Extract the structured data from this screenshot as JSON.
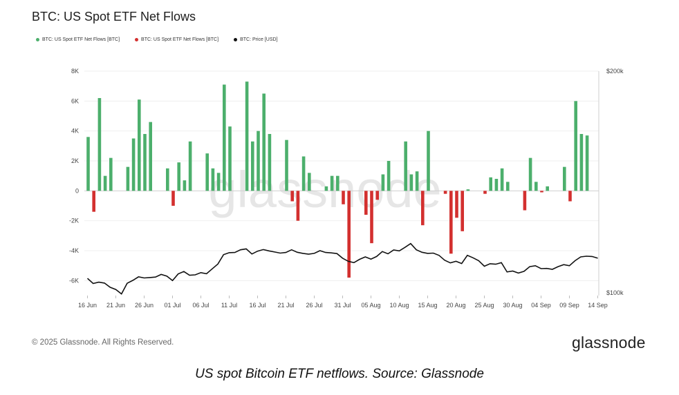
{
  "title": "BTC: US Spot ETF Net Flows",
  "legend": [
    {
      "label": "BTC: US Spot ETF Net Flows [BTC]",
      "color": "#4caf6c"
    },
    {
      "label": "BTC: US Spot ETF Net Flows [BTC]",
      "color": "#d3302f"
    },
    {
      "label": "BTC: Price [USD]",
      "color": "#111111"
    }
  ],
  "watermark": "glassnode",
  "copyright": "© 2025 Glassnode. All Rights Reserved.",
  "brand": "glassnode",
  "caption": "US spot Bitcoin ETF netflows. Source: Glassnode",
  "chart_data": {
    "type": "bar",
    "x_ticks": [
      "16 Jun",
      "21 Jun",
      "26 Jun",
      "01 Jul",
      "06 Jul",
      "11 Jul",
      "16 Jul",
      "21 Jul",
      "26 Jul",
      "31 Jul",
      "05 Aug",
      "10 Aug",
      "15 Aug",
      "20 Aug",
      "25 Aug",
      "30 Aug",
      "04 Sep",
      "09 Sep",
      "14 Sep"
    ],
    "y_ticks": [
      "8K",
      "6K",
      "4K",
      "2K",
      "0",
      "-2K",
      "-4K",
      "-6K"
    ],
    "y_range": [
      -7000,
      8000
    ],
    "y2_ticks": [
      "$200k",
      "$100k"
    ],
    "y2_range": [
      100000,
      200000
    ],
    "colors": {
      "positive": "#4caf6c",
      "negative": "#d3302f",
      "price": "#111111"
    },
    "flows_days_from_16_jun": [
      [
        0,
        3600
      ],
      [
        1,
        -1400
      ],
      [
        2,
        6200
      ],
      [
        3,
        1000
      ],
      [
        4,
        2200
      ],
      [
        7,
        1600
      ],
      [
        8,
        3500
      ],
      [
        9,
        6100
      ],
      [
        10,
        3800
      ],
      [
        11,
        4600
      ],
      [
        14,
        1500
      ],
      [
        15,
        -1000
      ],
      [
        16,
        1900
      ],
      [
        17,
        700
      ],
      [
        18,
        3300
      ],
      [
        21,
        2500
      ],
      [
        22,
        1500
      ],
      [
        23,
        1200
      ],
      [
        24,
        7100
      ],
      [
        25,
        4300
      ],
      [
        28,
        7300
      ],
      [
        29,
        3300
      ],
      [
        30,
        4000
      ],
      [
        31,
        6500
      ],
      [
        32,
        3800
      ],
      [
        35,
        3400
      ],
      [
        36,
        -700
      ],
      [
        37,
        -2000
      ],
      [
        38,
        2300
      ],
      [
        39,
        1200
      ],
      [
        42,
        300
      ],
      [
        43,
        1000
      ],
      [
        44,
        1000
      ],
      [
        45,
        -900
      ],
      [
        46,
        -5800
      ],
      [
        49,
        -1600
      ],
      [
        50,
        -3500
      ],
      [
        51,
        -600
      ],
      [
        52,
        1100
      ],
      [
        53,
        2000
      ],
      [
        56,
        3300
      ],
      [
        57,
        1100
      ],
      [
        58,
        1300
      ],
      [
        59,
        -2300
      ],
      [
        60,
        4000
      ],
      [
        63,
        -200
      ],
      [
        64,
        -4200
      ],
      [
        65,
        -1800
      ],
      [
        66,
        -2700
      ],
      [
        67,
        100
      ],
      [
        70,
        -200
      ],
      [
        71,
        900
      ],
      [
        72,
        800
      ],
      [
        73,
        1500
      ],
      [
        74,
        600
      ],
      [
        77,
        -1300
      ],
      [
        78,
        2200
      ],
      [
        79,
        600
      ],
      [
        80,
        -100
      ],
      [
        81,
        300
      ],
      [
        84,
        1600
      ],
      [
        85,
        -700
      ],
      [
        86,
        6000
      ],
      [
        87,
        3800
      ],
      [
        88,
        3700
      ]
    ],
    "price_usd": [
      [
        0,
        106500
      ],
      [
        1,
        104200
      ],
      [
        2,
        104800
      ],
      [
        3,
        104400
      ],
      [
        4,
        102500
      ],
      [
        5,
        101500
      ],
      [
        6,
        99500
      ],
      [
        7,
        104300
      ],
      [
        8,
        105600
      ],
      [
        9,
        107200
      ],
      [
        10,
        106700
      ],
      [
        11,
        106900
      ],
      [
        12,
        107100
      ],
      [
        13,
        108300
      ],
      [
        14,
        107500
      ],
      [
        15,
        105500
      ],
      [
        16,
        108500
      ],
      [
        17,
        109600
      ],
      [
        18,
        107900
      ],
      [
        19,
        108100
      ],
      [
        20,
        109100
      ],
      [
        21,
        108600
      ],
      [
        22,
        110800
      ],
      [
        23,
        113000
      ],
      [
        24,
        117200
      ],
      [
        25,
        118100
      ],
      [
        26,
        118200
      ],
      [
        27,
        119400
      ],
      [
        28,
        119800
      ],
      [
        29,
        117500
      ],
      [
        30,
        118800
      ],
      [
        31,
        119500
      ],
      [
        32,
        118900
      ],
      [
        33,
        118400
      ],
      [
        34,
        117900
      ],
      [
        35,
        118200
      ],
      [
        36,
        119400
      ],
      [
        37,
        118300
      ],
      [
        38,
        117800
      ],
      [
        39,
        117400
      ],
      [
        40,
        117800
      ],
      [
        41,
        119000
      ],
      [
        42,
        118200
      ],
      [
        43,
        118000
      ],
      [
        44,
        117700
      ],
      [
        45,
        115600
      ],
      [
        46,
        114200
      ],
      [
        47,
        113600
      ],
      [
        48,
        115100
      ],
      [
        49,
        116200
      ],
      [
        50,
        115200
      ],
      [
        51,
        116400
      ],
      [
        52,
        118600
      ],
      [
        53,
        117600
      ],
      [
        54,
        119300
      ],
      [
        55,
        118900
      ],
      [
        56,
        120500
      ],
      [
        57,
        122200
      ],
      [
        58,
        119400
      ],
      [
        59,
        118300
      ],
      [
        60,
        117800
      ],
      [
        61,
        117900
      ],
      [
        62,
        116900
      ],
      [
        63,
        114700
      ],
      [
        64,
        113500
      ],
      [
        65,
        114200
      ],
      [
        66,
        113200
      ],
      [
        67,
        116900
      ],
      [
        68,
        115800
      ],
      [
        69,
        114500
      ],
      [
        70,
        112000
      ],
      [
        71,
        113100
      ],
      [
        72,
        112900
      ],
      [
        73,
        113600
      ],
      [
        74,
        109400
      ],
      [
        75,
        109800
      ],
      [
        76,
        108900
      ],
      [
        77,
        109700
      ],
      [
        78,
        111800
      ],
      [
        79,
        112200
      ],
      [
        80,
        110900
      ],
      [
        81,
        111000
      ],
      [
        82,
        110600
      ],
      [
        83,
        111800
      ],
      [
        84,
        112700
      ],
      [
        85,
        112200
      ],
      [
        86,
        114500
      ],
      [
        87,
        116200
      ],
      [
        88,
        116500
      ],
      [
        89,
        116400
      ],
      [
        90,
        115600
      ]
    ]
  }
}
